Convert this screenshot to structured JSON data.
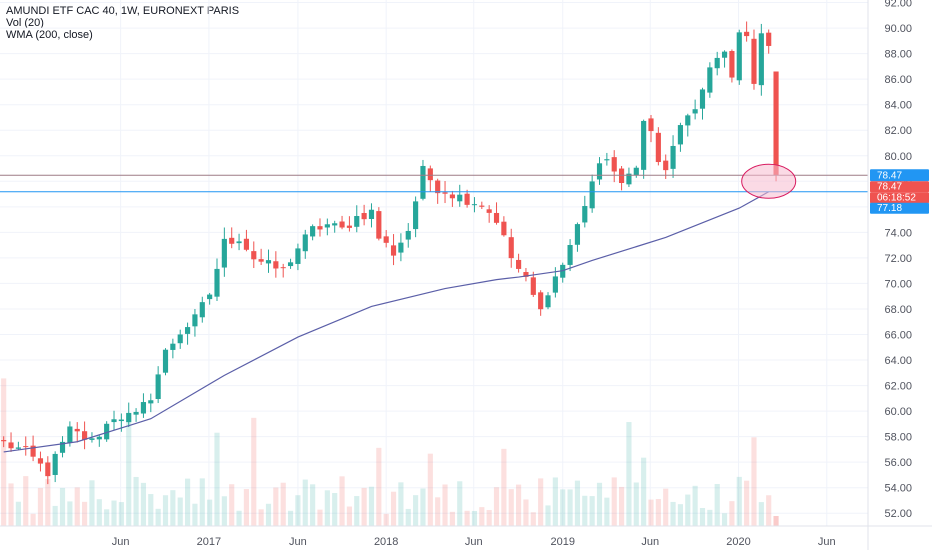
{
  "legend": {
    "title": "AMUNDI ETF CAC 40, 1W, EURONEXT PARIS",
    "vol": "Vol (20)",
    "wma": "WMA (200, close)"
  },
  "price_tags": {
    "upper_line": "78.47",
    "last_price": "78.47",
    "countdown": "06:18:52",
    "lower_line": "77.18"
  },
  "colors": {
    "up": "#26a69a",
    "down": "#ef5350",
    "wma": "#5b5fa8",
    "blue_line": "#2196f3",
    "gray_line": "#9e7b85",
    "highlight_fill": "#f8bbd0",
    "highlight_stroke": "#d81b60"
  },
  "chart_data": {
    "type": "candlestick",
    "symbol": "AMUNDI ETF CAC 40",
    "interval": "1W",
    "exchange": "EURONEXT PARIS",
    "y_ticks": [
      "52.00",
      "54.00",
      "56.00",
      "58.00",
      "60.00",
      "62.00",
      "64.00",
      "66.00",
      "68.00",
      "70.00",
      "72.00",
      "74.00",
      "76.00",
      "78.00",
      "80.00",
      "82.00",
      "84.00",
      "86.00",
      "88.00",
      "90.00",
      "92.00"
    ],
    "ylim": [
      51,
      92.2
    ],
    "x_ticks": [
      "Jun",
      "2017",
      "Jun",
      "2018",
      "Jun",
      "2019",
      "Jun",
      "2020",
      "Jun"
    ],
    "x_tick_positions": [
      16.4,
      28.4,
      40.5,
      52.5,
      64.4,
      76.5,
      88.4,
      100.4,
      112.4
    ],
    "xlim": [
      0,
      118
    ],
    "last_week": 104,
    "anchors": [
      [
        0,
        57.5
      ],
      [
        3,
        56.8
      ],
      [
        6,
        55.2
      ],
      [
        9,
        58.5
      ],
      [
        12,
        57.6
      ],
      [
        15,
        59.6
      ],
      [
        18,
        59.6
      ],
      [
        20,
        61.2
      ],
      [
        22,
        64.6
      ],
      [
        24,
        66.2
      ],
      [
        26,
        67.2
      ],
      [
        28,
        69.2
      ],
      [
        30,
        73.2
      ],
      [
        32,
        73.6
      ],
      [
        34,
        72.0
      ],
      [
        36,
        71.4
      ],
      [
        38,
        71.0
      ],
      [
        40,
        72.8
      ],
      [
        42,
        74.2
      ],
      [
        44,
        74.6
      ],
      [
        46,
        74.2
      ],
      [
        48,
        75.2
      ],
      [
        50,
        75.6
      ],
      [
        51,
        73.6
      ],
      [
        53,
        72.4
      ],
      [
        55,
        74.2
      ],
      [
        57,
        78.8
      ],
      [
        59,
        77.5
      ],
      [
        61,
        77.0
      ],
      [
        63,
        76.6
      ],
      [
        65,
        76.2
      ],
      [
        67,
        75.0
      ],
      [
        69,
        72.0
      ],
      [
        71,
        70.2
      ],
      [
        73,
        67.8
      ],
      [
        74,
        69.5
      ],
      [
        76,
        71.5
      ],
      [
        78,
        74.5
      ],
      [
        80,
        78.0
      ],
      [
        82,
        80.0
      ],
      [
        84,
        77.5
      ],
      [
        86,
        79.5
      ],
      [
        87,
        82.6
      ],
      [
        88,
        81.8
      ],
      [
        89,
        79.6
      ],
      [
        90,
        78.6
      ],
      [
        92,
        82.6
      ],
      [
        94,
        83.2
      ],
      [
        96,
        87.2
      ],
      [
        98,
        88.0
      ],
      [
        99,
        85.8
      ],
      [
        100,
        89.6
      ],
      [
        101,
        89.2
      ],
      [
        102,
        86.0
      ],
      [
        103,
        89.2
      ],
      [
        104,
        88.6
      ]
    ],
    "last_candle": {
      "open": 86.6,
      "high": 86.6,
      "low": 78.0,
      "close": 78.47
    },
    "wma_200": [
      [
        0,
        56.8
      ],
      [
        10,
        57.6
      ],
      [
        20,
        59.4
      ],
      [
        30,
        62.8
      ],
      [
        40,
        65.8
      ],
      [
        50,
        68.2
      ],
      [
        60,
        69.6
      ],
      [
        67,
        70.3
      ],
      [
        70,
        70.5
      ],
      [
        76,
        71.0
      ],
      [
        80,
        71.8
      ],
      [
        90,
        73.6
      ],
      [
        100,
        75.9
      ],
      [
        104,
        77.18
      ]
    ],
    "horizontal_lines": [
      {
        "value": 78.47,
        "label": "78.47"
      },
      {
        "value": 77.18,
        "label": "77.18"
      }
    ],
    "volume_max_label": "",
    "highlight": {
      "shape": "ellipse",
      "center_week": 103.5,
      "center_value": 78.0
    }
  }
}
